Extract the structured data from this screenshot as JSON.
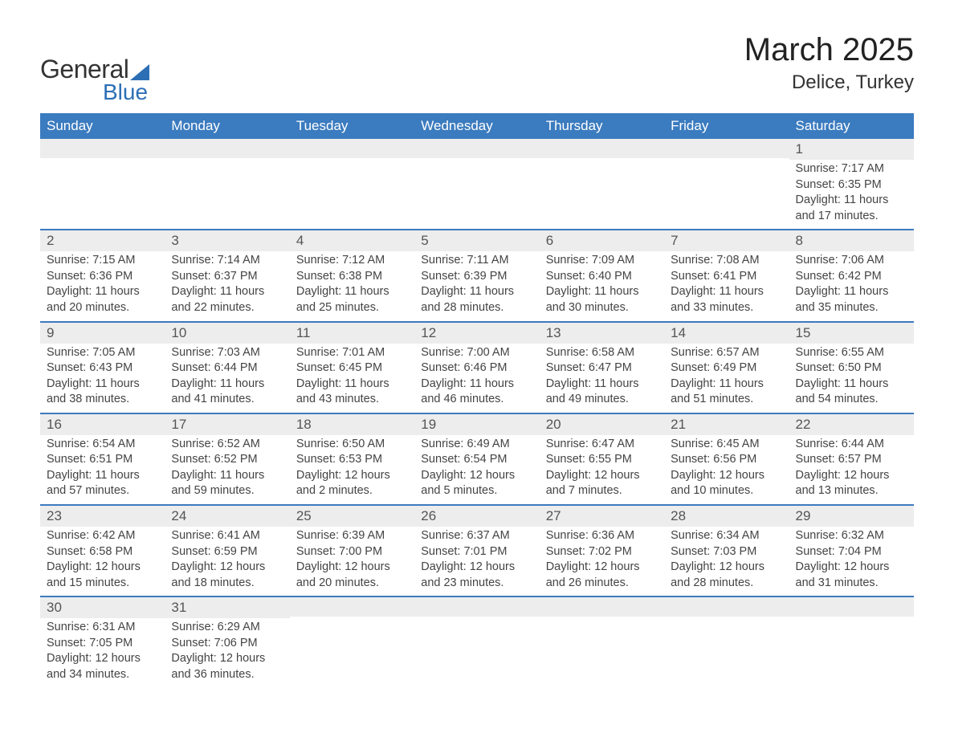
{
  "logo": {
    "general": "General",
    "blue": "Blue"
  },
  "title": "March 2025",
  "location": "Delice, Turkey",
  "weekdays": [
    "Sunday",
    "Monday",
    "Tuesday",
    "Wednesday",
    "Thursday",
    "Friday",
    "Saturday"
  ],
  "colors": {
    "header_bg": "#3b7bbf",
    "header_text": "#ffffff",
    "daynum_bg": "#ededed",
    "border": "#3b7bbf",
    "brand": "#2d6fb5"
  },
  "weeks": [
    [
      null,
      null,
      null,
      null,
      null,
      null,
      {
        "n": "1",
        "sr": "Sunrise: 7:17 AM",
        "ss": "Sunset: 6:35 PM",
        "d1": "Daylight: 11 hours",
        "d2": "and 17 minutes."
      }
    ],
    [
      {
        "n": "2",
        "sr": "Sunrise: 7:15 AM",
        "ss": "Sunset: 6:36 PM",
        "d1": "Daylight: 11 hours",
        "d2": "and 20 minutes."
      },
      {
        "n": "3",
        "sr": "Sunrise: 7:14 AM",
        "ss": "Sunset: 6:37 PM",
        "d1": "Daylight: 11 hours",
        "d2": "and 22 minutes."
      },
      {
        "n": "4",
        "sr": "Sunrise: 7:12 AM",
        "ss": "Sunset: 6:38 PM",
        "d1": "Daylight: 11 hours",
        "d2": "and 25 minutes."
      },
      {
        "n": "5",
        "sr": "Sunrise: 7:11 AM",
        "ss": "Sunset: 6:39 PM",
        "d1": "Daylight: 11 hours",
        "d2": "and 28 minutes."
      },
      {
        "n": "6",
        "sr": "Sunrise: 7:09 AM",
        "ss": "Sunset: 6:40 PM",
        "d1": "Daylight: 11 hours",
        "d2": "and 30 minutes."
      },
      {
        "n": "7",
        "sr": "Sunrise: 7:08 AM",
        "ss": "Sunset: 6:41 PM",
        "d1": "Daylight: 11 hours",
        "d2": "and 33 minutes."
      },
      {
        "n": "8",
        "sr": "Sunrise: 7:06 AM",
        "ss": "Sunset: 6:42 PM",
        "d1": "Daylight: 11 hours",
        "d2": "and 35 minutes."
      }
    ],
    [
      {
        "n": "9",
        "sr": "Sunrise: 7:05 AM",
        "ss": "Sunset: 6:43 PM",
        "d1": "Daylight: 11 hours",
        "d2": "and 38 minutes."
      },
      {
        "n": "10",
        "sr": "Sunrise: 7:03 AM",
        "ss": "Sunset: 6:44 PM",
        "d1": "Daylight: 11 hours",
        "d2": "and 41 minutes."
      },
      {
        "n": "11",
        "sr": "Sunrise: 7:01 AM",
        "ss": "Sunset: 6:45 PM",
        "d1": "Daylight: 11 hours",
        "d2": "and 43 minutes."
      },
      {
        "n": "12",
        "sr": "Sunrise: 7:00 AM",
        "ss": "Sunset: 6:46 PM",
        "d1": "Daylight: 11 hours",
        "d2": "and 46 minutes."
      },
      {
        "n": "13",
        "sr": "Sunrise: 6:58 AM",
        "ss": "Sunset: 6:47 PM",
        "d1": "Daylight: 11 hours",
        "d2": "and 49 minutes."
      },
      {
        "n": "14",
        "sr": "Sunrise: 6:57 AM",
        "ss": "Sunset: 6:49 PM",
        "d1": "Daylight: 11 hours",
        "d2": "and 51 minutes."
      },
      {
        "n": "15",
        "sr": "Sunrise: 6:55 AM",
        "ss": "Sunset: 6:50 PM",
        "d1": "Daylight: 11 hours",
        "d2": "and 54 minutes."
      }
    ],
    [
      {
        "n": "16",
        "sr": "Sunrise: 6:54 AM",
        "ss": "Sunset: 6:51 PM",
        "d1": "Daylight: 11 hours",
        "d2": "and 57 minutes."
      },
      {
        "n": "17",
        "sr": "Sunrise: 6:52 AM",
        "ss": "Sunset: 6:52 PM",
        "d1": "Daylight: 11 hours",
        "d2": "and 59 minutes."
      },
      {
        "n": "18",
        "sr": "Sunrise: 6:50 AM",
        "ss": "Sunset: 6:53 PM",
        "d1": "Daylight: 12 hours",
        "d2": "and 2 minutes."
      },
      {
        "n": "19",
        "sr": "Sunrise: 6:49 AM",
        "ss": "Sunset: 6:54 PM",
        "d1": "Daylight: 12 hours",
        "d2": "and 5 minutes."
      },
      {
        "n": "20",
        "sr": "Sunrise: 6:47 AM",
        "ss": "Sunset: 6:55 PM",
        "d1": "Daylight: 12 hours",
        "d2": "and 7 minutes."
      },
      {
        "n": "21",
        "sr": "Sunrise: 6:45 AM",
        "ss": "Sunset: 6:56 PM",
        "d1": "Daylight: 12 hours",
        "d2": "and 10 minutes."
      },
      {
        "n": "22",
        "sr": "Sunrise: 6:44 AM",
        "ss": "Sunset: 6:57 PM",
        "d1": "Daylight: 12 hours",
        "d2": "and 13 minutes."
      }
    ],
    [
      {
        "n": "23",
        "sr": "Sunrise: 6:42 AM",
        "ss": "Sunset: 6:58 PM",
        "d1": "Daylight: 12 hours",
        "d2": "and 15 minutes."
      },
      {
        "n": "24",
        "sr": "Sunrise: 6:41 AM",
        "ss": "Sunset: 6:59 PM",
        "d1": "Daylight: 12 hours",
        "d2": "and 18 minutes."
      },
      {
        "n": "25",
        "sr": "Sunrise: 6:39 AM",
        "ss": "Sunset: 7:00 PM",
        "d1": "Daylight: 12 hours",
        "d2": "and 20 minutes."
      },
      {
        "n": "26",
        "sr": "Sunrise: 6:37 AM",
        "ss": "Sunset: 7:01 PM",
        "d1": "Daylight: 12 hours",
        "d2": "and 23 minutes."
      },
      {
        "n": "27",
        "sr": "Sunrise: 6:36 AM",
        "ss": "Sunset: 7:02 PM",
        "d1": "Daylight: 12 hours",
        "d2": "and 26 minutes."
      },
      {
        "n": "28",
        "sr": "Sunrise: 6:34 AM",
        "ss": "Sunset: 7:03 PM",
        "d1": "Daylight: 12 hours",
        "d2": "and 28 minutes."
      },
      {
        "n": "29",
        "sr": "Sunrise: 6:32 AM",
        "ss": "Sunset: 7:04 PM",
        "d1": "Daylight: 12 hours",
        "d2": "and 31 minutes."
      }
    ],
    [
      {
        "n": "30",
        "sr": "Sunrise: 6:31 AM",
        "ss": "Sunset: 7:05 PM",
        "d1": "Daylight: 12 hours",
        "d2": "and 34 minutes."
      },
      {
        "n": "31",
        "sr": "Sunrise: 6:29 AM",
        "ss": "Sunset: 7:06 PM",
        "d1": "Daylight: 12 hours",
        "d2": "and 36 minutes."
      },
      null,
      null,
      null,
      null,
      null
    ]
  ]
}
